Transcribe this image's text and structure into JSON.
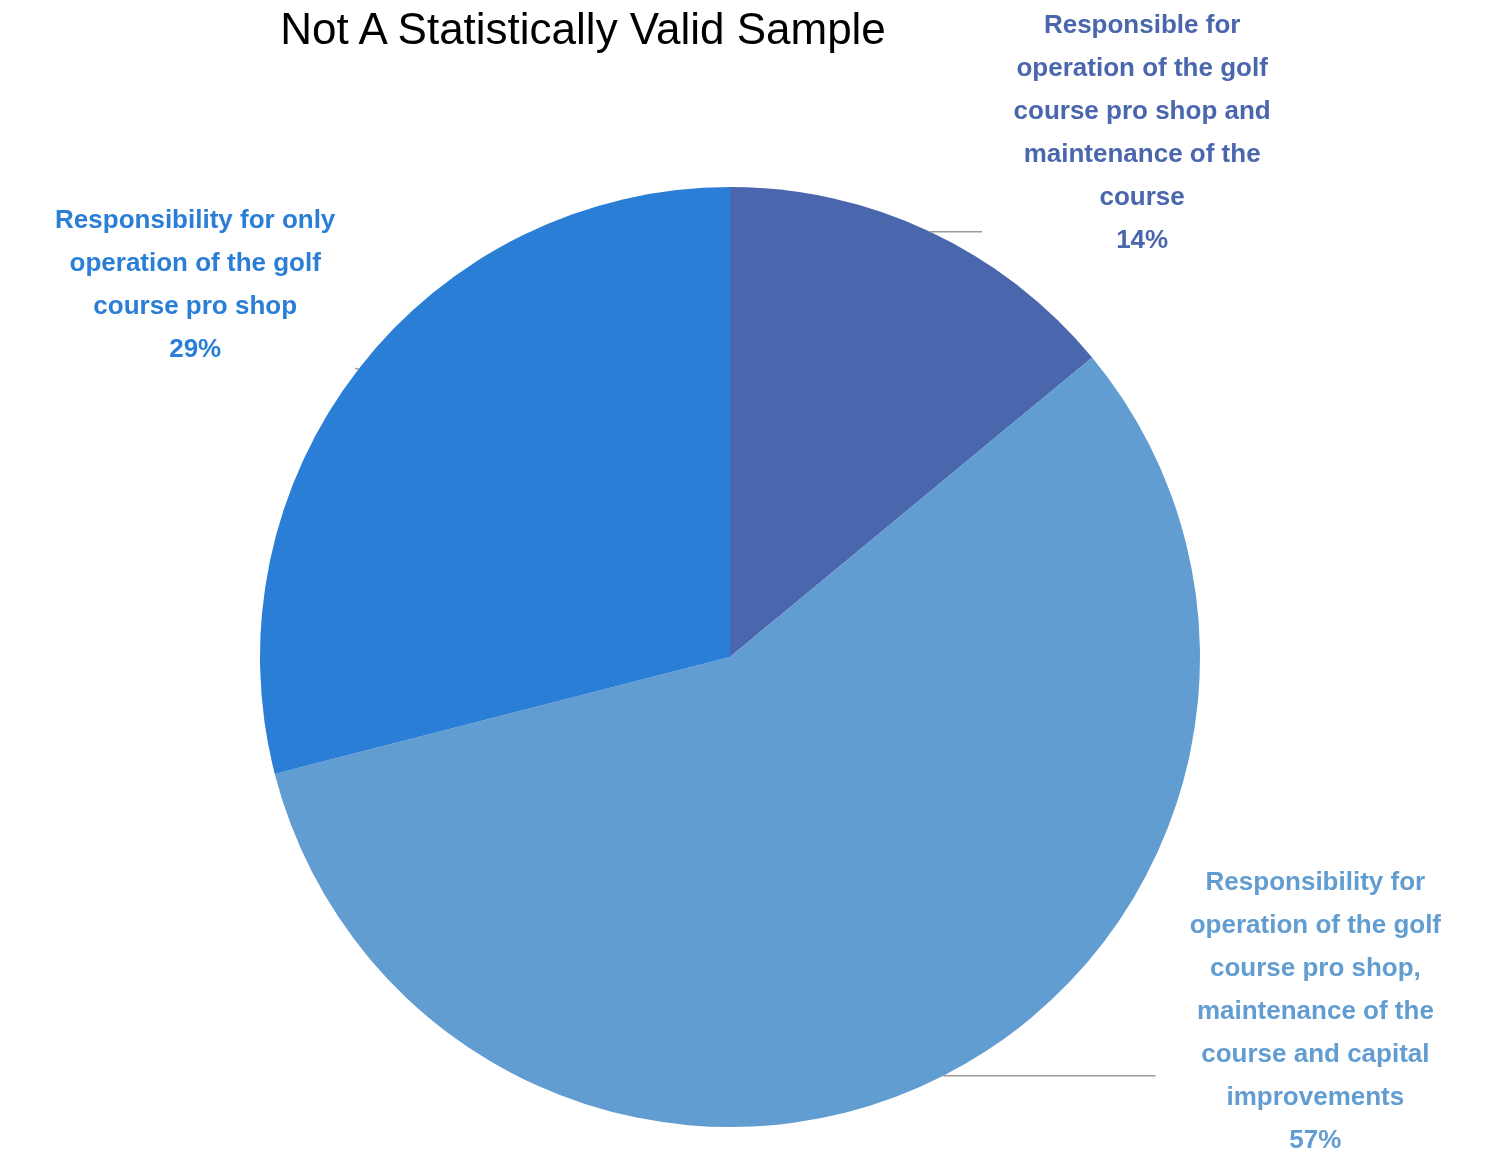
{
  "chart_data": {
    "type": "pie",
    "title": "Not A Statistically Valid Sample",
    "categories": [
      "Responsible for operation of the golf course pro shop and maintenance of the course",
      "Responsibility for operation of the golf course pro shop, maintenance of the course and capital improvements",
      "Responsibility for only operation of the golf course pro shop"
    ],
    "values": [
      14,
      57,
      29
    ],
    "colors": [
      "#4a66ad",
      "#629dd1",
      "#2a7ed6"
    ],
    "value_labels": [
      "14%",
      "57%",
      "29%"
    ]
  }
}
